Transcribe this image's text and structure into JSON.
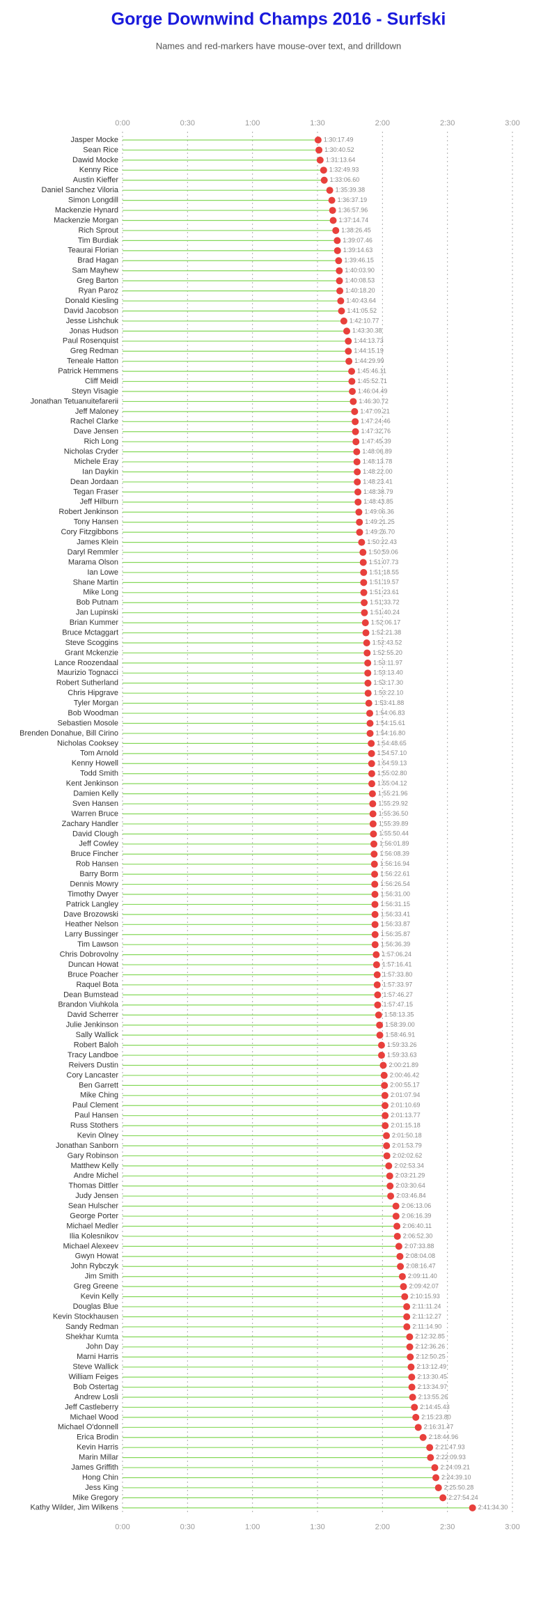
{
  "chart_data": {
    "type": "lollipop",
    "title": "Gorge Downwind Champs 2016 - Surfski",
    "subtitle": "Names and red-markers have mouse-over text, and drilldown",
    "categories": [
      "Jasper Mocke",
      "Sean Rice",
      "Dawid Mocke",
      "Kenny Rice",
      "Austin Kieffer",
      "Daniel Sanchez Viloria",
      "Simon Longdill",
      "Mackenzie Hynard",
      "Mackenzie Morgan",
      "Rich Sprout",
      "Tim Burdiak",
      "Teaurai Florian",
      "Brad Hagan",
      "Sam Mayhew",
      "Greg Barton",
      "Ryan Paroz",
      "Donald Kiesling",
      "David Jacobson",
      "Jesse Lishchuk",
      "Jonas Hudson",
      "Paul Rosenquist",
      "Greg Redman",
      "Teneale Hatton",
      "Patrick Hemmens",
      "Cliff Meidl",
      "Steyn Visagie",
      "Jonathan Tetuanuitefarerii",
      "Jeff Maloney",
      "Rachel Clarke",
      "Dave Jensen",
      "Rich Long",
      "Nicholas Cryder",
      "Michele Eray",
      "Ian Daykin",
      "Dean Jordaan",
      "Tegan Fraser",
      "Jeff Hilburn",
      "Robert Jenkinson",
      "Tony Hansen",
      "Cory Fitzgibbons",
      "James Klein",
      "Daryl Remmler",
      "Marama Olson",
      "Ian Lowe",
      "Shane Martin",
      "Mike Long",
      "Bob Putnam",
      "Jan Lupinski",
      "Brian Kummer",
      "Bruce Mctaggart",
      "Steve Scoggins",
      "Grant Mckenzie",
      "Lance Roozendaal",
      "Maurizio Tognacci",
      "Robert Sutherland",
      "Chris Hipgrave",
      "Tyler Morgan",
      "Bob Woodman",
      "Sebastien Mosole",
      "Brenden Donahue, Bill Cirino",
      "Nicholas Cooksey",
      "Tom Arnold",
      "Kenny Howell",
      "Todd Smith",
      "Kent Jenkinson",
      "Damien Kelly",
      "Sven Hansen",
      "Warren Bruce",
      "Zachary Handler",
      "David Clough",
      "Jeff Cowley",
      "Bruce Fincher",
      "Rob Hansen",
      "Barry Borm",
      "Dennis Mowry",
      "Timothy Dwyer",
      "Patrick Langley",
      "Dave Brozowski",
      "Heather Nelson",
      "Larry Bussinger",
      "Tim Lawson",
      "Chris Dobrovolny",
      "Duncan Howat",
      "Bruce Poacher",
      "Raquel Bota",
      "Dean Bumstead",
      "Brandon Viuhkola",
      "David Scherrer",
      "Julie Jenkinson",
      "Sally Wallick",
      "Robert Baloh",
      "Tracy Landboe",
      "Reivers Dustin",
      "Cory Lancaster",
      "Ben Garrett",
      "Mike Ching",
      "Paul Clement",
      "Paul Hansen",
      "Russ Stothers",
      "Kevin Olney",
      "Jonathan Sanborn",
      "Gary Robinson",
      "Matthew Kelly",
      "Andre Michel",
      "Thomas Dittler",
      "Judy Jensen",
      "Sean Hulscher",
      "George Porter",
      "Michael Medler",
      "Ilia Kolesnikov",
      "Michael Alexeev",
      "Gwyn Howat",
      "John Rybczyk",
      "Jim Smith",
      "Greg Greene",
      "Kevin Kelly",
      "Douglas Blue",
      "Kevin Stockhausen",
      "Sandy Redman",
      "Shekhar Kumta",
      "John Day",
      "Marni Harris",
      "Steve Wallick",
      "William Feiges",
      "Bob Ostertag",
      "Andrew Losli",
      "Jeff Castleberry",
      "Michael Wood",
      "Michael O'donnell",
      "Erica Brodin",
      "Kevin Harris",
      "Marin Millar",
      "James Griffith",
      "Hong Chin",
      "Jess King",
      "Mike Gregory",
      "Kathy Wilder, Jim Wilkens"
    ],
    "values": [
      5417.49,
      5440.52,
      5473.64,
      5569.93,
      5586.6,
      5739.38,
      5797.19,
      5817.96,
      5834.74,
      5906.45,
      5947.46,
      5954.63,
      5986.15,
      6003.9,
      6008.53,
      6018.2,
      6043.64,
      6065.52,
      6130.77,
      6210.38,
      6253.73,
      6255.19,
      6269.99,
      6346.11,
      6352.71,
      6364.49,
      6390.72,
      6429.21,
      6444.46,
      6452.76,
      6465.39,
      6486.89,
      6493.78,
      6502.0,
      6503.41,
      6518.79,
      6523.85,
      6546.36,
      6561.25,
      6566.7,
      6622.43,
      6659.06,
      6667.73,
      6678.55,
      6679.57,
      6683.61,
      6693.72,
      6700.24,
      6726.17,
      6741.38,
      6763.52,
      6775.2,
      6791.97,
      6793.4,
      6797.3,
      6802.1,
      6821.88,
      6846.83,
      6855.61,
      6856.8,
      6888.65,
      6897.1,
      6899.13,
      6902.8,
      6904.12,
      6921.96,
      6929.92,
      6936.5,
      6939.89,
      6950.44,
      6961.89,
      6968.39,
      6976.94,
      6982.61,
      6986.54,
      6991.0,
      6991.15,
      6993.41,
      6993.87,
      6995.87,
      6996.39,
      7026.24,
      7036.41,
      7053.8,
      7053.97,
      7066.27,
      7067.15,
      7093.35,
      7119.0,
      7126.91,
      7173.26,
      7173.63,
      7221.89,
      7246.42,
      7255.17,
      7267.94,
      7270.69,
      7273.77,
      7275.18,
      7310.18,
      7313.79,
      7322.62,
      7373.34,
      7401.29,
      7410.64,
      7426.84,
      7573.06,
      7576.39,
      7600.11,
      7612.3,
      7653.88,
      7684.08,
      7696.47,
      7751.4,
      7782.07,
      7815.93,
      7871.24,
      7872.27,
      7874.9,
      7952.85,
      7956.26,
      7970.25,
      7992.49,
      8010.45,
      8014.97,
      8035.26,
      8085.43,
      8123.8,
      8191.47,
      8324.96,
      8507.93,
      8529.93,
      8649.21,
      8679.1,
      8750.28,
      8874.24,
      9694.3
    ],
    "value_labels": [
      "1:30:17.49",
      "1:30:40.52",
      "1:31:13.64",
      "1:32:49.93",
      "1:33:06.60",
      "1:35:39.38",
      "1:36:37.19",
      "1:36:57.96",
      "1:37:14.74",
      "1:38:26.45",
      "1:39:07.46",
      "1:39:14.63",
      "1:39:46.15",
      "1:40:03.90",
      "1:40:08.53",
      "1:40:18.20",
      "1:40:43.64",
      "1:41:05.52",
      "1:42:10.77",
      "1:43:30.38",
      "1:44:13.73",
      "1:44:15.19",
      "1:44:29.99",
      "1:45:46.11",
      "1:45:52.71",
      "1:46:04.49",
      "1:46:30.72",
      "1:47:09.21",
      "1:47:24.46",
      "1:47:32.76",
      "1:47:45.39",
      "1:48:06.89",
      "1:48:13.78",
      "1:48:22.00",
      "1:48:23.41",
      "1:48:38.79",
      "1:48:43.85",
      "1:49:06.36",
      "1:49:21.25",
      "1:49:26.70",
      "1:50:22.43",
      "1:50:59.06",
      "1:51:07.73",
      "1:51:18.55",
      "1:51:19.57",
      "1:51:23.61",
      "1:51:33.72",
      "1:51:40.24",
      "1:52:06.17",
      "1:52:21.38",
      "1:52:43.52",
      "1:52:55.20",
      "1:53:11.97",
      "1:53:13.40",
      "1:53:17.30",
      "1:53:22.10",
      "1:53:41.88",
      "1:54:06.83",
      "1:54:15.61",
      "1:54:16.80",
      "1:54:48.65",
      "1:54:57.10",
      "1:54:59.13",
      "1:55:02.80",
      "1:55:04.12",
      "1:55:21.96",
      "1:55:29.92",
      "1:55:36.50",
      "1:55:39.89",
      "1:55:50.44",
      "1:56:01.89",
      "1:56:08.39",
      "1:56:16.94",
      "1:56:22.61",
      "1:56:26.54",
      "1:56:31.00",
      "1:56:31.15",
      "1:56:33.41",
      "1:56:33.87",
      "1:56:35.87",
      "1:56:36.39",
      "1:57:06.24",
      "1:57:16.41",
      "1:57:33.80",
      "1:57:33.97",
      "1:57:46.27",
      "1:57:47.15",
      "1:58:13.35",
      "1:58:39.00",
      "1:58:46.91",
      "1:59:33.26",
      "1:59:33.63",
      "2:00:21.89",
      "2:00:46.42",
      "2:00:55.17",
      "2:01:07.94",
      "2:01:10.69",
      "2:01:13.77",
      "2:01:15.18",
      "2:01:50.18",
      "2:01:53.79",
      "2:02:02.62",
      "2:02:53.34",
      "2:03:21.29",
      "2:03:30.64",
      "2:03:46.84",
      "2:06:13.06",
      "2:06:16.39",
      "2:06:40.11",
      "2:06:52.30",
      "2:07:33.88",
      "2:08:04.08",
      "2:08:16.47",
      "2:09:11.40",
      "2:09:42.07",
      "2:10:15.93",
      "2:11:11.24",
      "2:11:12.27",
      "2:11:14.90",
      "2:12:32.85",
      "2:12:36.26",
      "2:12:50.25",
      "2:13:12.49",
      "2:13:30.45",
      "2:13:34.97",
      "2:13:55.26",
      "2:14:45.43",
      "2:15:23.80",
      "2:16:31.47",
      "2:18:44.96",
      "2:21:47.93",
      "2:22:09.93",
      "2:24:09.21",
      "2:24:39.10",
      "2:25:50.28",
      "2:27:54.24",
      "2:41:34.30"
    ],
    "xlim": [
      0,
      10800
    ],
    "xticks": [
      {
        "value": 0,
        "label": "0:00"
      },
      {
        "value": 1800,
        "label": "0:30"
      },
      {
        "value": 3600,
        "label": "1:00"
      },
      {
        "value": 5400,
        "label": "1:30"
      },
      {
        "value": 7200,
        "label": "2:00"
      },
      {
        "value": 9000,
        "label": "2:30"
      },
      {
        "value": 10800,
        "label": "3:00"
      }
    ],
    "grid": true,
    "color": "#e8403c",
    "stem_color": "#86d85a"
  }
}
